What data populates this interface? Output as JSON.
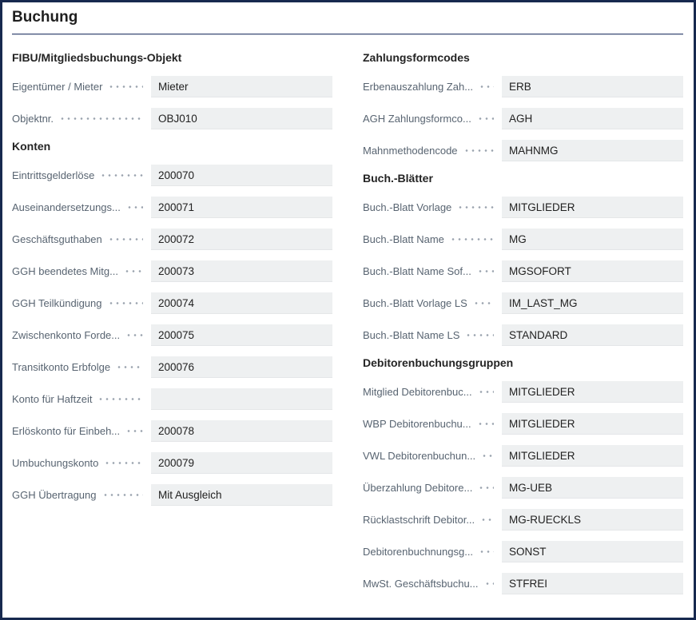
{
  "page": {
    "title": "Buchung"
  },
  "colors": {
    "c-border": "#17294f",
    "c-title": "#1f1f1f",
    "c-heading": "#242424",
    "c-label": "#586471",
    "c-dots": "#9aa3ae",
    "c-value": "#212121",
    "c-boxbg": "#eef0f1",
    "c-rule-top": "#41517a",
    "c-rule-bottom": "#c3c9d5"
  },
  "columns": [
    {
      "sections": [
        {
          "heading": "FIBU/Mitgliedsbuchungs-Objekt",
          "fields": [
            {
              "label": "Eigentümer / Mieter",
              "value": "Mieter"
            },
            {
              "label": "Objektnr.",
              "value": "OBJ010"
            }
          ]
        },
        {
          "heading": "Konten",
          "fields": [
            {
              "label": "Eintrittsgelderlöse",
              "value": "200070"
            },
            {
              "label": "Auseinandersetzungs...",
              "value": "200071"
            },
            {
              "label": "Geschäftsguthaben",
              "value": "200072"
            },
            {
              "label": "GGH beendetes Mitg...",
              "value": "200073"
            },
            {
              "label": "GGH Teilkündigung",
              "value": "200074"
            },
            {
              "label": "Zwischenkonto Forde...",
              "value": "200075"
            },
            {
              "label": "Transitkonto Erbfolge",
              "value": "200076"
            },
            {
              "label": "Konto für Haftzeit",
              "value": ""
            },
            {
              "label": "Erlöskonto für Einbeh...",
              "value": "200078"
            },
            {
              "label": "Umbuchungskonto",
              "value": "200079"
            },
            {
              "label": "GGH Übertragung",
              "value": "Mit Ausgleich"
            }
          ]
        }
      ]
    },
    {
      "sections": [
        {
          "heading": "Zahlungsformcodes",
          "fields": [
            {
              "label": "Erbenauszahlung Zah...",
              "value": "ERB"
            },
            {
              "label": "AGH Zahlungsformco...",
              "value": "AGH"
            },
            {
              "label": "Mahnmethodencode",
              "value": "MAHNMG"
            }
          ]
        },
        {
          "heading": "Buch.-Blätter",
          "fields": [
            {
              "label": "Buch.-Blatt Vorlage",
              "value": "MITGLIEDER"
            },
            {
              "label": "Buch.-Blatt Name",
              "value": "MG"
            },
            {
              "label": "Buch.-Blatt Name Sof...",
              "value": "MGSOFORT"
            },
            {
              "label": "Buch.-Blatt Vorlage LS",
              "value": "IM_LAST_MG"
            },
            {
              "label": "Buch.-Blatt Name LS",
              "value": "STANDARD"
            }
          ]
        },
        {
          "heading": "Debitorenbuchungsgruppen",
          "fields": [
            {
              "label": "Mitglied Debitorenbuc...",
              "value": "MITGLIEDER"
            },
            {
              "label": "WBP Debitorenbuchu...",
              "value": "MITGLIEDER"
            },
            {
              "label": "VWL Debitorenbuchun...",
              "value": "MITGLIEDER"
            },
            {
              "label": "Überzahlung Debitore...",
              "value": "MG-UEB"
            },
            {
              "label": "Rücklastschrift Debitor...",
              "value": "MG-RUECKLS"
            },
            {
              "label": "Debitorenbuchnungsg...",
              "value": "SONST"
            },
            {
              "label": "MwSt. Geschäftsbuchu...",
              "value": "STFREI"
            }
          ]
        }
      ]
    }
  ]
}
